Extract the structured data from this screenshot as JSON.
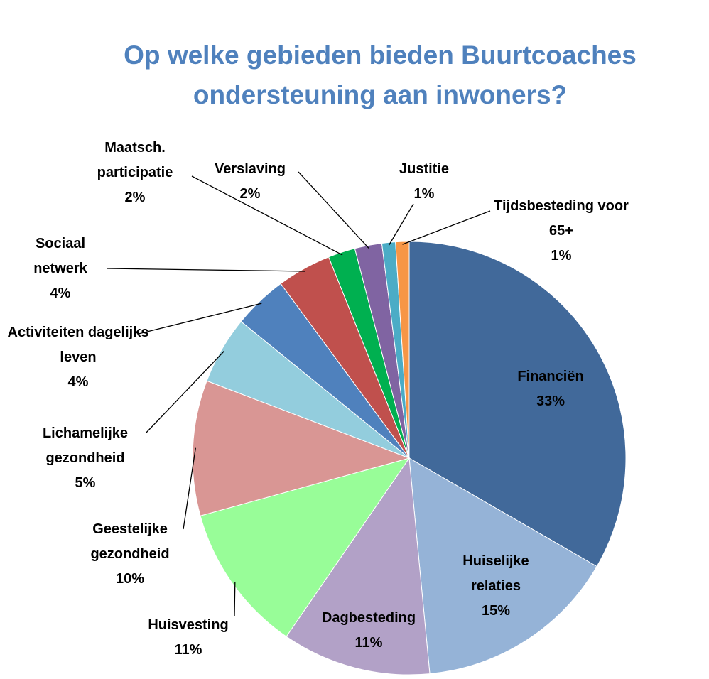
{
  "chart_data": {
    "type": "pie",
    "title": "Op welke gebieden bieden Buurtcoaches ondersteuning aan inwoners?",
    "categories": [
      "Financiën",
      "Huiselijke relaties",
      "Dagbesteding",
      "Huisvesting",
      "Geestelijke gezondheid",
      "Lichamelijke gezondheid",
      "Activiteiten dagelijks leven",
      "Sociaal netwerk",
      "Maatsch. participatie",
      "Verslaving",
      "Justitie",
      "Tijdsbesteding voor 65+"
    ],
    "values": [
      33,
      15,
      11,
      11,
      10,
      5,
      4,
      4,
      2,
      2,
      1,
      1
    ],
    "value_labels": [
      "33%",
      "15%",
      "11%",
      "11%",
      "10%",
      "5%",
      "4%",
      "4%",
      "2%",
      "2%",
      "1%",
      "1%"
    ],
    "colors": [
      "#41699a",
      "#95b3d7",
      "#b2a1c7",
      "#98fd98",
      "#d99694",
      "#93cddd",
      "#4f81bd",
      "#c0504d",
      "#00b050",
      "#8064a2",
      "#4bacc6",
      "#f79646"
    ]
  }
}
